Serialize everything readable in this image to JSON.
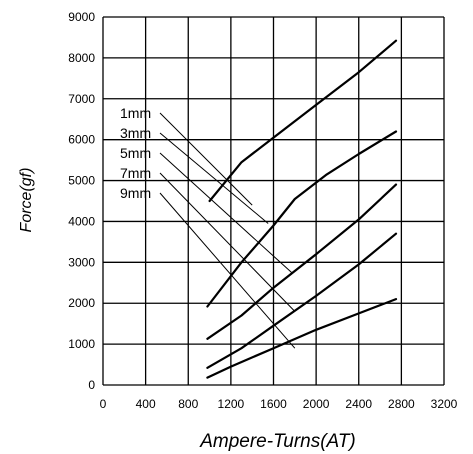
{
  "chart_data": {
    "type": "line",
    "title": "",
    "xlabel": "Ampere-Turns(AT)",
    "ylabel": "Force(gf)",
    "xlim": [
      0,
      3200
    ],
    "ylim": [
      0,
      9000
    ],
    "grid": true,
    "x_ticks": [
      0,
      400,
      800,
      1200,
      1600,
      2000,
      2400,
      2800,
      3200
    ],
    "y_ticks": [
      0,
      1000,
      2000,
      3000,
      4000,
      5000,
      6000,
      7000,
      8000,
      9000
    ],
    "series": [
      {
        "name": "1mm",
        "points": [
          [
            1000,
            4500
          ],
          [
            1300,
            5450
          ],
          [
            1600,
            6050
          ],
          [
            2000,
            6850
          ],
          [
            2400,
            7650
          ],
          [
            2750,
            8420
          ]
        ],
        "label_anchor": [
          1400,
          4400
        ]
      },
      {
        "name": "3mm",
        "points": [
          [
            980,
            1920
          ],
          [
            1300,
            3000
          ],
          [
            1600,
            3900
          ],
          [
            1800,
            4550
          ],
          [
            2100,
            5150
          ],
          [
            2400,
            5650
          ],
          [
            2750,
            6200
          ]
        ],
        "label_anchor": [
          1550,
          3950
        ]
      },
      {
        "name": "5mm",
        "points": [
          [
            980,
            1130
          ],
          [
            1300,
            1700
          ],
          [
            1600,
            2380
          ],
          [
            2000,
            3200
          ],
          [
            2400,
            4050
          ],
          [
            2750,
            4900
          ]
        ],
        "label_anchor": [
          1770,
          2750
        ]
      },
      {
        "name": "7mm",
        "points": [
          [
            980,
            420
          ],
          [
            1300,
            900
          ],
          [
            1600,
            1450
          ],
          [
            2000,
            2180
          ],
          [
            2400,
            2950
          ],
          [
            2750,
            3700
          ]
        ],
        "label_anchor": [
          1800,
          1800
        ]
      },
      {
        "name": "9mm",
        "points": [
          [
            980,
            180
          ],
          [
            1200,
            450
          ],
          [
            1600,
            900
          ],
          [
            2000,
            1350
          ],
          [
            2400,
            1750
          ],
          [
            2750,
            2100
          ]
        ],
        "label_anchor": [
          1800,
          900
        ]
      }
    ]
  }
}
